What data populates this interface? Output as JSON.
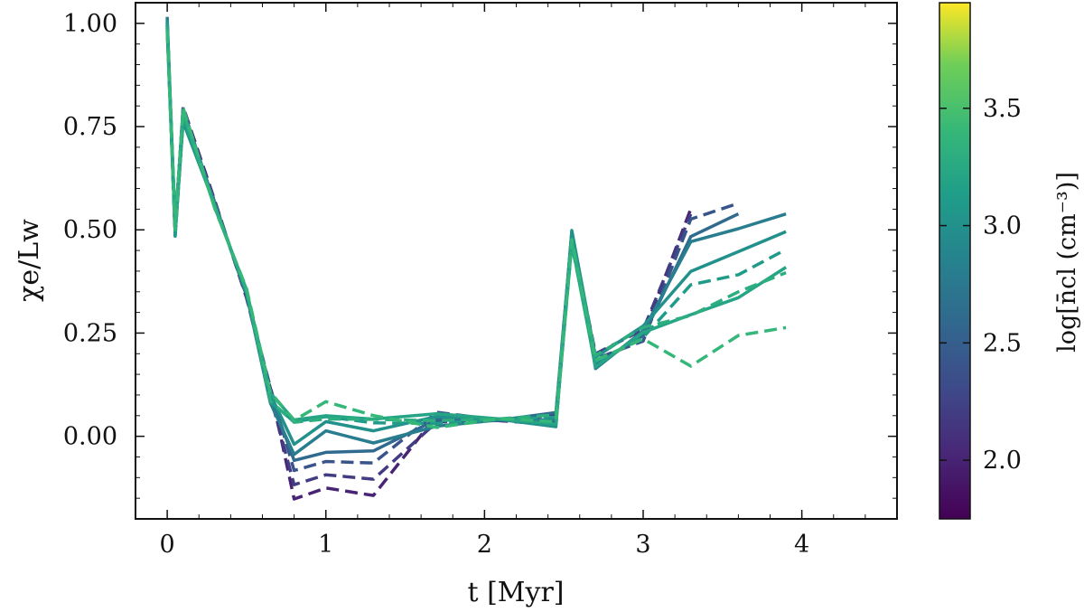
{
  "chart_data": {
    "type": "line",
    "xlabel": "t [Myr]",
    "ylabel": "χe/Lw",
    "xlim": [
      -0.2,
      4.6
    ],
    "ylim": [
      -0.2,
      1.05
    ],
    "x_ticks": [
      {
        "value": 0,
        "label": "0"
      },
      {
        "value": 1,
        "label": "1"
      },
      {
        "value": 2,
        "label": "2"
      },
      {
        "value": 3,
        "label": "3"
      },
      {
        "value": 4,
        "label": "4"
      }
    ],
    "y_ticks": [
      {
        "value": 0.0,
        "label": "0.00"
      },
      {
        "value": 0.25,
        "label": "0.25"
      },
      {
        "value": 0.5,
        "label": "0.50"
      },
      {
        "value": 0.75,
        "label": "0.75"
      },
      {
        "value": 1.0,
        "label": "1.00"
      }
    ],
    "grid": false,
    "colormap": "viridis",
    "colorbar": {
      "label": "log[n̄cl (cm⁻³)]",
      "range": [
        1.75,
        3.95
      ],
      "ticks": [
        {
          "value": 2.0,
          "label": "2.0"
        },
        {
          "value": 2.5,
          "label": "2.5"
        },
        {
          "value": 3.0,
          "label": "3.0"
        },
        {
          "value": 3.5,
          "label": "3.5"
        }
      ]
    },
    "series_template": {
      "x": [
        0.0,
        0.05,
        0.1,
        0.3,
        0.5,
        0.65,
        0.8,
        1.0,
        1.3,
        1.7,
        2.1,
        2.45,
        2.55,
        2.7,
        3.0,
        3.3,
        3.6,
        3.9
      ],
      "y": [
        1.0,
        0.5,
        0.78,
        0.56,
        0.35,
        0.1,
        0.02,
        0.08,
        0.06,
        0.04,
        0.03,
        0.04,
        0.48,
        0.18,
        0.25,
        0.4,
        0.5,
        0.42
      ]
    },
    "series": [
      {
        "log_n": 2.0,
        "linestyle": "dashed",
        "end": 3.5,
        "y_peak": 0.66,
        "y_dip": -0.16
      },
      {
        "log_n": 2.2,
        "linestyle": "dashed",
        "end": 3.4,
        "y_peak": 0.63,
        "y_dip": -0.12
      },
      {
        "log_n": 2.4,
        "linestyle": "dashed",
        "end": 3.7,
        "y_peak": 0.6,
        "y_dip": -0.08
      },
      {
        "log_n": 2.6,
        "linestyle": "solid",
        "end": 3.85,
        "y_peak": 0.58,
        "y_dip": -0.05
      },
      {
        "log_n": 2.8,
        "linestyle": "solid",
        "end": 3.9,
        "y_peak": 0.55,
        "y_dip": -0.03
      },
      {
        "log_n": 3.0,
        "linestyle": "solid",
        "end": 4.0,
        "y_peak": 0.5,
        "y_dip": 0.0
      },
      {
        "log_n": 3.1,
        "linestyle": "dashed",
        "end": 4.1,
        "y_peak": 0.45,
        "y_dip": 0.02
      },
      {
        "log_n": 3.2,
        "linestyle": "solid",
        "end": 4.0,
        "y_peak": 0.4,
        "y_dip": 0.03
      },
      {
        "log_n": 3.3,
        "linestyle": "dashed",
        "end": 4.2,
        "y_peak": 0.38,
        "y_dip": 0.03
      },
      {
        "log_n": 3.4,
        "linestyle": "dashed",
        "end": 4.4,
        "y_peak": 0.28,
        "y_dip": 0.04
      }
    ]
  }
}
